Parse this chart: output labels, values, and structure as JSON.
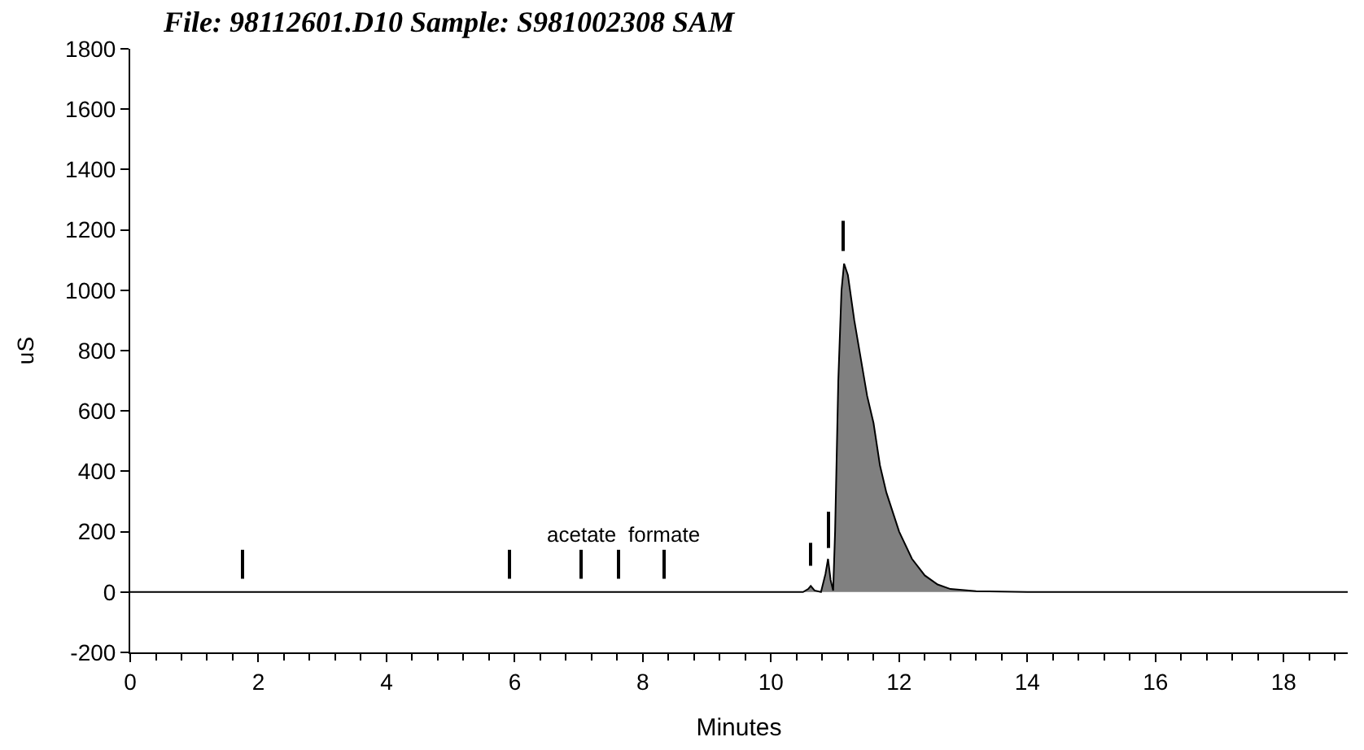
{
  "chart_data": {
    "type": "area",
    "title": "File: 98112601.D10 Sample: S981002308 SAM",
    "xlabel": "Minutes",
    "ylabel": "uS",
    "x": [
      0,
      2,
      4,
      6,
      8,
      10,
      10.5,
      10.58,
      10.62,
      10.68,
      10.78,
      10.85,
      10.89,
      10.93,
      10.97,
      11.0,
      11.05,
      11.1,
      11.14,
      11.2,
      11.3,
      11.5,
      11.6,
      11.7,
      11.8,
      12.0,
      12.2,
      12.4,
      12.6,
      12.8,
      13.2,
      14,
      16,
      19
    ],
    "series": [
      {
        "color": "#808080",
        "values": [
          0,
          0,
          0,
          0,
          0,
          0,
          0,
          10,
          20,
          5,
          0,
          60,
          110,
          40,
          5,
          200,
          700,
          1000,
          1088,
          1050,
          900,
          650,
          560,
          420,
          330,
          200,
          110,
          55,
          25,
          10,
          3,
          0,
          0,
          0
        ]
      },
      {
        "type": "bar",
        "color": "#000000",
        "x": [
          1.76,
          5.92,
          7.04,
          7.63,
          8.34,
          10.61,
          10.89,
          11.12
        ],
        "base": [
          44,
          44,
          44,
          44,
          44,
          87,
          146,
          1130
        ],
        "values": [
          96,
          96,
          96,
          96,
          96,
          76,
          120,
          100
        ],
        "value_labels": [
          null,
          null,
          "acetate",
          null,
          "formate",
          null,
          null,
          null
        ]
      }
    ],
    "xlim": [
      0,
      19
    ],
    "ylim": [
      -200,
      1800
    ],
    "xticks": [
      0,
      2,
      4,
      6,
      8,
      10,
      12,
      14,
      16,
      18
    ],
    "yticks": [
      -200,
      0,
      200,
      400,
      600,
      800,
      1000,
      1200,
      1400,
      1600,
      1800
    ]
  }
}
